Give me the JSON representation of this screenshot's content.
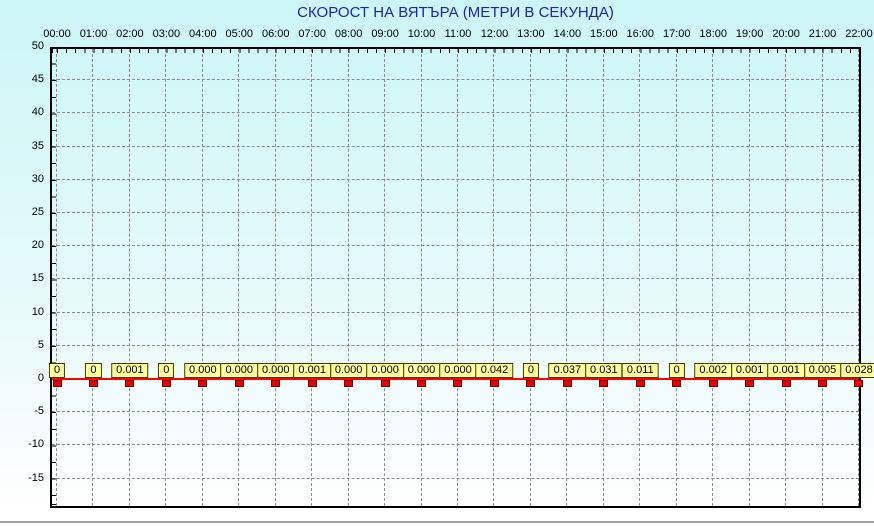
{
  "colors": {
    "title_text": "#2121b3",
    "background_top": "#ccf6f7",
    "background_bottom": "#ffffff",
    "plot_border": "#000000",
    "grid": "#8c8c8c",
    "zero_line": "#ff0000",
    "marker_fill": "#e60000",
    "marker_border": "#7a0000",
    "label_box_fill": "#ffff9e",
    "label_box_border": "#3c3c00",
    "axis_text": "#000000",
    "separator": "#a3a3a3"
  },
  "chart_data": {
    "type": "line",
    "title": "СКОРОСТ НА ВЯТЪРА (МЕТРИ В СЕКУНДА)",
    "x": [
      "00:00",
      "01:00",
      "02:00",
      "03:00",
      "04:00",
      "05:00",
      "06:00",
      "07:00",
      "08:00",
      "09:00",
      "10:00",
      "11:00",
      "12:00",
      "13:00",
      "14:00",
      "15:00",
      "16:00",
      "17:00",
      "18:00",
      "19:00",
      "20:00",
      "21:00",
      "22:00"
    ],
    "x_axis_position": "top",
    "series": [
      {
        "name": "скорост на вятъра",
        "values": [
          0,
          0,
          0.001,
          0,
          0,
          0,
          0,
          0.001,
          0,
          0,
          0,
          0,
          0.042,
          0,
          0.037,
          0.031,
          0.011,
          0,
          0.002,
          0.001,
          0.001,
          0.005,
          0.028
        ]
      }
    ],
    "point_labels": [
      "0",
      "0",
      "0.001",
      "0",
      "0.000",
      "0.000",
      "0.000",
      "0.001",
      "0.000",
      "0.000",
      "0.000",
      "0.000",
      "0.042",
      "0",
      "0.037",
      "0.031",
      "0.011",
      "0",
      "0.002",
      "0.001",
      "0.001",
      "0.005",
      "0.028"
    ],
    "y_ticks": [
      50,
      45,
      40,
      35,
      30,
      25,
      20,
      15,
      10,
      5,
      0,
      -5,
      -10,
      -15
    ],
    "ylim": [
      -19.4,
      50
    ],
    "grid": true,
    "legend": "none",
    "marker_shape": "square",
    "zero_baseline_highlighted": true
  }
}
